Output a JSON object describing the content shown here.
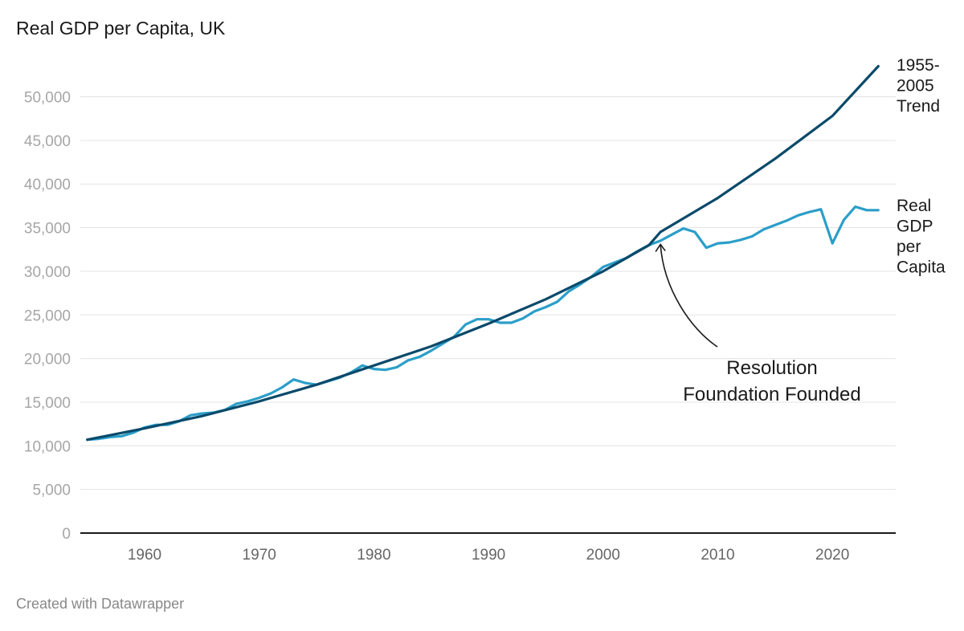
{
  "header": {
    "title": "Real GDP per Capita, UK"
  },
  "footer": {
    "credit": "Created with Datawrapper"
  },
  "chart_data": {
    "type": "line",
    "title": "Real GDP per Capita, UK",
    "xlabel": "",
    "ylabel": "",
    "xlim": [
      1955,
      2024
    ],
    "ylim": [
      0,
      50000
    ],
    "x_ticks": [
      1960,
      1970,
      1980,
      1990,
      2000,
      2010,
      2020
    ],
    "y_ticks": [
      0,
      5000,
      10000,
      15000,
      20000,
      25000,
      30000,
      35000,
      40000,
      45000,
      50000
    ],
    "y_tick_labels": [
      "0",
      "5,000",
      "10,000",
      "15,000",
      "20,000",
      "25,000",
      "30,000",
      "35,000",
      "40,000",
      "45,000",
      "50,000"
    ],
    "gridlines": true,
    "series": [
      {
        "name": "Real GDP per Capita",
        "label_lines": [
          "Real",
          "GDP",
          "per",
          "Capita"
        ],
        "color": "#2b9ec9",
        "x": [
          1955,
          1956,
          1957,
          1958,
          1959,
          1960,
          1961,
          1962,
          1963,
          1964,
          1965,
          1966,
          1967,
          1968,
          1969,
          1970,
          1971,
          1972,
          1973,
          1974,
          1975,
          1976,
          1977,
          1978,
          1979,
          1980,
          1981,
          1982,
          1983,
          1984,
          1985,
          1986,
          1987,
          1988,
          1989,
          1990,
          1991,
          1992,
          1993,
          1994,
          1995,
          1996,
          1997,
          1998,
          1999,
          2000,
          2001,
          2002,
          2003,
          2004,
          2005,
          2006,
          2007,
          2008,
          2009,
          2010,
          2011,
          2012,
          2013,
          2014,
          2015,
          2016,
          2017,
          2018,
          2019,
          2020,
          2021,
          2022,
          2023,
          2024
        ],
        "values": [
          10700,
          10800,
          11000,
          11100,
          11500,
          12100,
          12400,
          12400,
          12800,
          13500,
          13700,
          13800,
          14100,
          14800,
          15100,
          15500,
          16000,
          16700,
          17600,
          17200,
          17000,
          17400,
          17800,
          18400,
          19200,
          18800,
          18700,
          19000,
          19800,
          20200,
          20900,
          21700,
          22500,
          23900,
          24500,
          24500,
          24100,
          24100,
          24600,
          25400,
          25900,
          26500,
          27700,
          28500,
          29400,
          30500,
          31000,
          31500,
          32300,
          33000,
          33500,
          34200,
          34900,
          34500,
          32700,
          33200,
          33300,
          33600,
          34000,
          34800,
          35300,
          35800,
          36400,
          36800,
          37100,
          33200,
          35900,
          37400,
          37000,
          37000
        ]
      },
      {
        "name": "1955-2005 Trend",
        "label_lines": [
          "1955-",
          "2005",
          "Trend"
        ],
        "color": "#0a4a6b",
        "x": [
          1955,
          1960,
          1965,
          1970,
          1975,
          1980,
          1985,
          1990,
          1995,
          2000,
          2004,
          2005,
          2010,
          2015,
          2020,
          2024
        ],
        "values": [
          10700,
          12000,
          13400,
          15100,
          17000,
          19200,
          21400,
          24000,
          26800,
          30000,
          33000,
          34500,
          38400,
          42900,
          47800,
          53500
        ]
      }
    ],
    "annotations": [
      {
        "text_lines": [
          "Resolution",
          "Foundation Founded"
        ],
        "x": 2005,
        "y": 34000
      }
    ]
  }
}
